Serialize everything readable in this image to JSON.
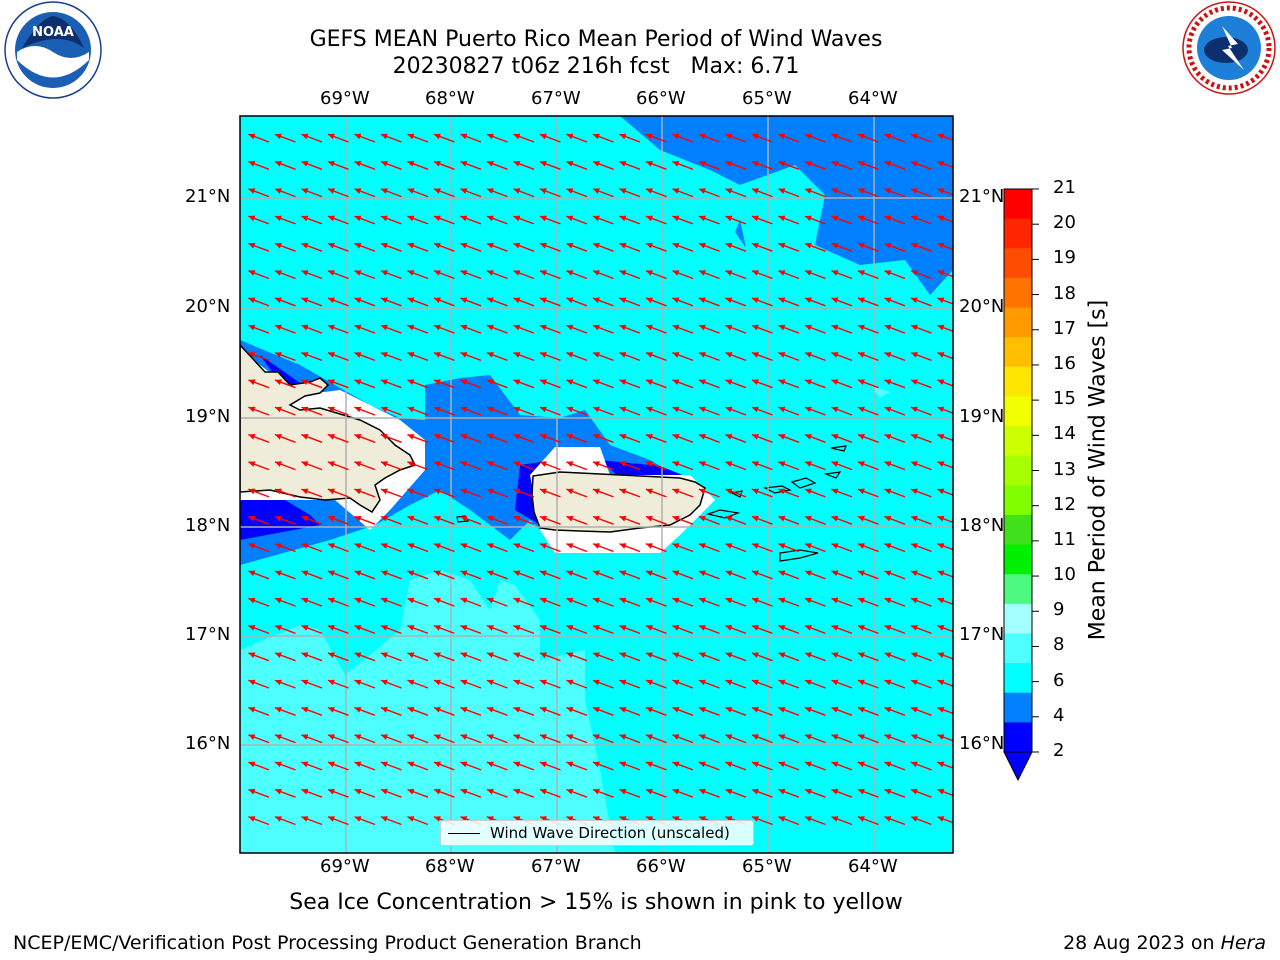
{
  "header": {
    "title_line1": "GEFS MEAN Puerto Rico Mean Period of Wind Waves",
    "title_line2": "20230827 t06z 216h fcst   Max: 6.71"
  },
  "logos": {
    "left": "noaa-logo",
    "right": "national-weather-service-logo"
  },
  "map": {
    "lon_labels": [
      "69°W",
      "68°W",
      "67°W",
      "66°W",
      "65°W",
      "64°W"
    ],
    "lat_labels": [
      "21°N",
      "20°N",
      "19°N",
      "18°N",
      "17°N",
      "16°N"
    ],
    "ocean_color": "#00ffff",
    "land_color": "#efedd9",
    "arrow_color": "#ff0000",
    "legend_label": "Wind Wave Direction (unscaled)",
    "wave_direction": "toward west-northwest"
  },
  "colorbar": {
    "label": "Mean Period of Wind Waves [s]",
    "ticks": [
      "21",
      "20",
      "19",
      "18",
      "17",
      "16",
      "15",
      "14",
      "13",
      "12",
      "11",
      "10",
      "9",
      "8",
      "6",
      "4",
      "2"
    ],
    "colors": [
      "#ff0000",
      "#ff2600",
      "#ff4d00",
      "#ff7300",
      "#ff9900",
      "#ffbf00",
      "#ffe600",
      "#f2ff00",
      "#ccff00",
      "#a6ff00",
      "#80ff00",
      "#40e01c",
      "#00f000",
      "#4df980",
      "#a6ffff",
      "#4dffff",
      "#00ffff",
      "#0080ff",
      "#0000ff"
    ]
  },
  "footer": {
    "ice_note": "Sea Ice Concentration > 15% is shown in pink to yellow",
    "left": "NCEP/EMC/Verification Post Processing Product Generation Branch",
    "date": "28 Aug 2023 on ",
    "host": "Hera"
  }
}
